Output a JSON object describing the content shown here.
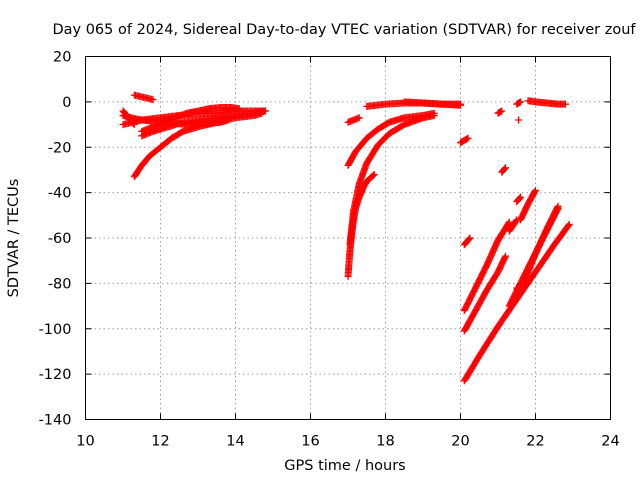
{
  "chart_data": {
    "type": "scatter",
    "title": "Day 065 of 2024, Sidereal Day-to-day VTEC variation (SDTVAR) for receiver zouf",
    "xlabel": "GPS time / hours",
    "ylabel": "SDTVAR / TECUs",
    "xlim": [
      10,
      24
    ],
    "ylim": [
      -140,
      20
    ],
    "xticks": [
      10,
      12,
      14,
      16,
      18,
      20,
      22,
      24
    ],
    "yticks": [
      -140,
      -120,
      -100,
      -80,
      -60,
      -40,
      -20,
      0,
      20
    ],
    "xtick_labels": [
      "10",
      "12",
      "14",
      "16",
      "18",
      "20",
      "22",
      "24"
    ],
    "ytick_labels": [
      "-140",
      "-120",
      "-100",
      "-80",
      "-60",
      "-40",
      "-20",
      "0",
      "20"
    ],
    "grid": true,
    "marker": "+",
    "color": "#ff0000",
    "segments": [
      {
        "x": [
          11.3,
          11.8
        ],
        "y": [
          3,
          1
        ]
      },
      {
        "x": [
          11.3,
          11.5,
          11.7,
          12.0,
          12.3,
          12.6,
          13.0,
          13.5,
          14.0,
          14.5,
          14.7
        ],
        "y": [
          -33,
          -28,
          -24,
          -20,
          -16,
          -13,
          -11,
          -9,
          -7,
          -6,
          -5
        ]
      },
      {
        "x": [
          11.5,
          11.8,
          12.2,
          12.6,
          13.0,
          13.5,
          14.0,
          14.5,
          14.8
        ],
        "y": [
          -15,
          -13,
          -11,
          -9,
          -8,
          -7,
          -6,
          -5,
          -4
        ]
      },
      {
        "x": [
          11.0,
          11.5,
          12.0,
          12.5,
          13.0,
          13.5,
          14.0,
          14.5,
          14.8
        ],
        "y": [
          -10,
          -8,
          -7,
          -6,
          -5,
          -5,
          -4,
          -4,
          -4
        ]
      },
      {
        "x": [
          11.0,
          11.2,
          11.5,
          11.8,
          12.1,
          12.4,
          12.7,
          13.0,
          13.3,
          13.6,
          13.8
        ],
        "y": [
          -6,
          -7,
          -8,
          -8.5,
          -9,
          -9.5,
          -10,
          -10,
          -9.5,
          -9,
          -8
        ]
      },
      {
        "x": [
          11.5,
          11.8,
          12.1,
          12.4,
          12.7,
          13.0,
          13.3,
          13.6,
          13.9,
          14.1
        ],
        "y": [
          -13,
          -11,
          -9,
          -7,
          -5,
          -4,
          -3,
          -2.5,
          -2.5,
          -3
        ]
      },
      {
        "x": [
          11.0,
          11.1,
          11.2,
          11.3
        ],
        "y": [
          -4,
          -6,
          -8,
          -10
        ]
      },
      {
        "x": [
          17.0,
          17.05,
          17.1,
          17.15,
          17.2,
          17.3,
          17.4,
          17.5,
          17.7
        ],
        "y": [
          -77,
          -66,
          -58,
          -52,
          -47,
          -42,
          -38,
          -35,
          -32
        ]
      },
      {
        "x": [
          17.05,
          17.15,
          17.3,
          17.5,
          17.8,
          18.1,
          18.5,
          19.0,
          19.3
        ],
        "y": [
          -63,
          -48,
          -36,
          -27,
          -19,
          -14,
          -10,
          -7,
          -6
        ]
      },
      {
        "x": [
          17.0,
          17.2,
          17.5,
          17.8,
          18.1,
          18.5,
          19.0,
          19.3
        ],
        "y": [
          -28,
          -22,
          -16,
          -12,
          -9,
          -7,
          -6,
          -5
        ]
      },
      {
        "x": [
          17.0,
          17.3
        ],
        "y": [
          -9,
          -7
        ]
      },
      {
        "x": [
          17.5,
          18.0,
          18.5,
          19.0,
          19.5,
          20.0
        ],
        "y": [
          -2,
          -1,
          -0.5,
          -0.5,
          -1,
          -1.5
        ]
      },
      {
        "x": [
          18.5,
          19.0,
          19.5,
          20.0
        ],
        "y": [
          0,
          -0.5,
          -1,
          -1
        ]
      },
      {
        "x": [
          20.0,
          20.2
        ],
        "y": [
          -18,
          -16
        ]
      },
      {
        "x": [
          20.1,
          20.25
        ],
        "y": [
          -63,
          -60
        ]
      },
      {
        "x": [
          20.1,
          20.4,
          20.7,
          21.0,
          21.3
        ],
        "y": [
          -92,
          -82,
          -72,
          -61,
          -53
        ]
      },
      {
        "x": [
          20.1,
          20.4,
          20.7,
          21.0,
          21.2
        ],
        "y": [
          -101,
          -92,
          -83,
          -75,
          -68
        ]
      },
      {
        "x": [
          20.1,
          20.5,
          21.0,
          21.5,
          22.0,
          22.5,
          22.9
        ],
        "y": [
          -123,
          -112,
          -99,
          -87,
          -75,
          -63,
          -54
        ]
      },
      {
        "x": [
          21.3,
          21.6,
          21.9,
          22.2,
          22.6
        ],
        "y": [
          -90,
          -80,
          -70,
          -60,
          -47
        ]
      },
      {
        "x": [
          21.0,
          21.1
        ],
        "y": [
          -5,
          -4
        ]
      },
      {
        "x": [
          21.1,
          21.2
        ],
        "y": [
          -31,
          -29
        ]
      },
      {
        "x": [
          21.3,
          21.5
        ],
        "y": [
          -57,
          -52
        ]
      },
      {
        "x": [
          21.6,
          21.8,
          22.0
        ],
        "y": [
          -52,
          -45,
          -39
        ]
      },
      {
        "x": [
          21.7,
          22.0,
          22.3,
          22.6
        ],
        "y": [
          -79,
          -67,
          -56,
          -46
        ]
      },
      {
        "x": [
          21.5,
          21.6
        ],
        "y": [
          -44,
          -42
        ]
      },
      {
        "x": [
          21.5,
          21.55
        ],
        "y": [
          -82,
          -84
        ]
      },
      {
        "x": [
          21.5,
          21.6
        ],
        "y": [
          -1,
          0
        ]
      },
      {
        "x": [
          21.8,
          22.0,
          22.3,
          22.6,
          22.8
        ],
        "y": [
          0.5,
          0,
          -0.5,
          -1,
          -1
        ]
      },
      {
        "x": [
          21.55
        ],
        "y": [
          -8
        ]
      }
    ]
  }
}
